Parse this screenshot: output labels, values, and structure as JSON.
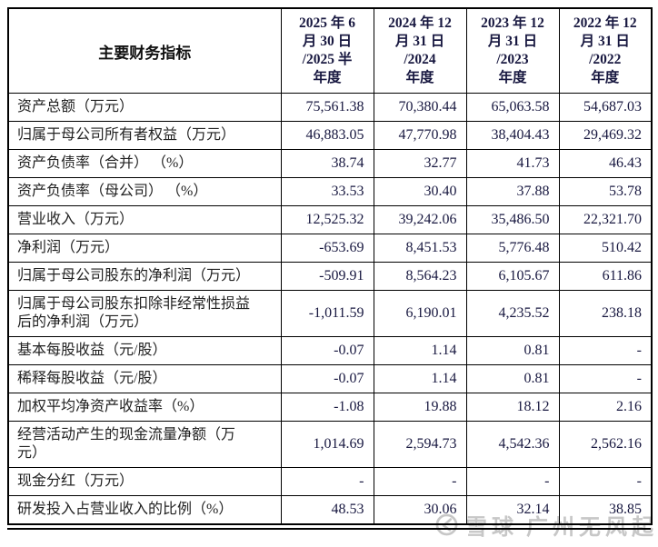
{
  "table": {
    "corner_header": "主要财务指标",
    "columns": [
      "2025 年 6\n月 30 日\n/2025 半\n年度",
      "2024 年 12\n月 31 日\n/2024\n年度",
      "2023 年 12\n月 31 日\n/2023\n年度",
      "2022 年 12\n月 31 日\n/2022\n年度"
    ],
    "rows": [
      {
        "label": "资产总额（万元）",
        "values": [
          "75,561.38",
          "70,380.44",
          "65,063.58",
          "54,687.03"
        ]
      },
      {
        "label": "归属于母公司所有者权益（万元）",
        "values": [
          "46,883.05",
          "47,770.98",
          "38,404.43",
          "29,469.32"
        ]
      },
      {
        "label": "资产负债率（合并） （%）",
        "values": [
          "38.74",
          "32.77",
          "41.73",
          "46.43"
        ]
      },
      {
        "label": "资产负债率（母公司） （%）",
        "values": [
          "33.53",
          "30.40",
          "37.88",
          "53.78"
        ]
      },
      {
        "label": "营业收入（万元）",
        "values": [
          "12,525.32",
          "39,242.06",
          "35,486.50",
          "22,321.70"
        ]
      },
      {
        "label": "净利润（万元）",
        "values": [
          "-653.69",
          "8,451.53",
          "5,776.48",
          "510.42"
        ]
      },
      {
        "label": "归属于母公司股东的净利润（万元）",
        "values": [
          "-509.91",
          "8,564.23",
          "6,105.67",
          "611.86"
        ]
      },
      {
        "label": "归属于母公司股东扣除非经常性损益\n后的净利润（万元）",
        "values": [
          "-1,011.59",
          "6,190.01",
          "4,235.52",
          "238.18"
        ]
      },
      {
        "label": "基本每股收益（元/股）",
        "values": [
          "-0.07",
          "1.14",
          "0.81",
          "-"
        ]
      },
      {
        "label": "稀释每股收益（元/股）",
        "values": [
          "-0.07",
          "1.14",
          "0.81",
          "-"
        ]
      },
      {
        "label": "加权平均净资产收益率（%）",
        "values": [
          "-1.08",
          "19.88",
          "18.12",
          "2.16"
        ]
      },
      {
        "label": "经营活动产生的现金流量净额（万\n元）",
        "values": [
          "1,014.69",
          "2,594.73",
          "4,542.36",
          "2,562.16"
        ]
      },
      {
        "label": "现金分红（万元）",
        "values": [
          "-",
          "-",
          "-",
          "-"
        ]
      },
      {
        "label": "研发投入占营业收入的比例（%）",
        "values": [
          "48.53",
          "30.06",
          "32.14",
          "38.85"
        ]
      }
    ]
  },
  "watermark": {
    "brand": "雪球",
    "username": "广州无风起浪",
    "color": "#c7c7c7"
  }
}
